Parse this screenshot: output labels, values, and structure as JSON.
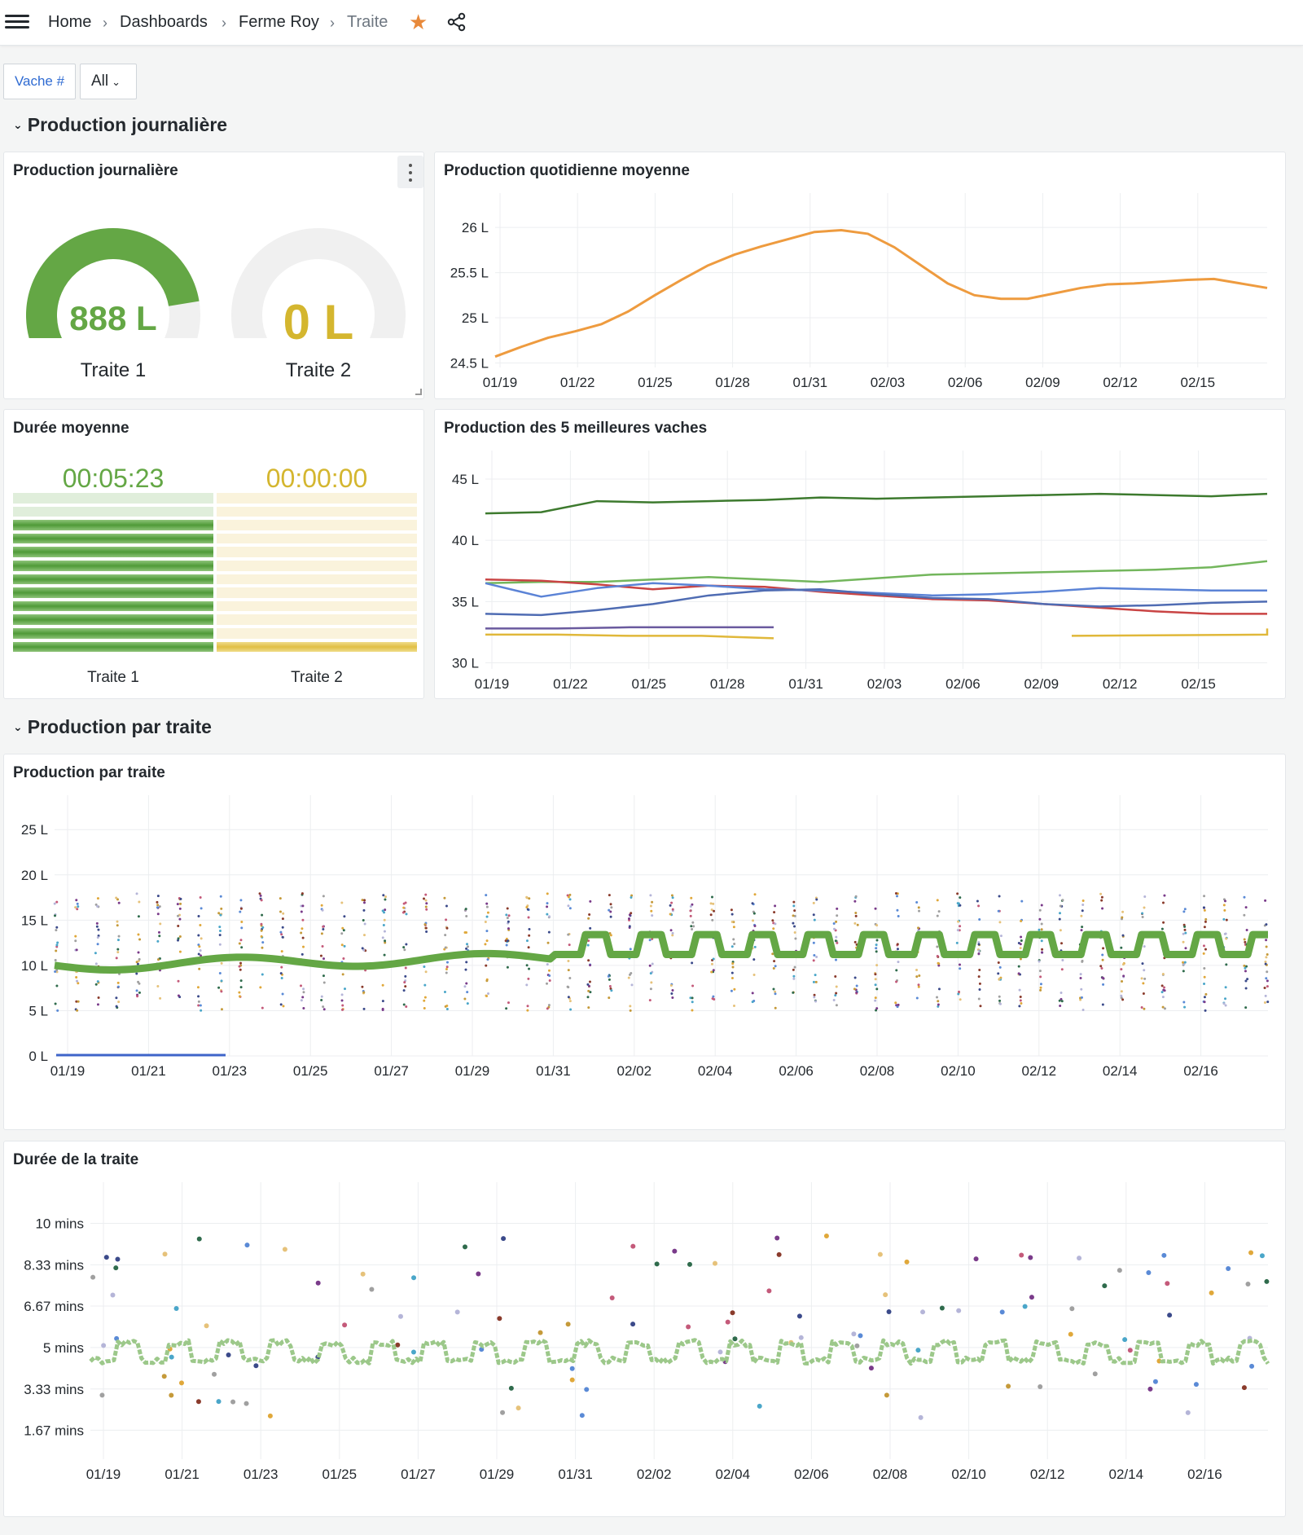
{
  "breadcrumbs": [
    "Home",
    "Dashboards",
    "Ferme Roy",
    "Traite"
  ],
  "variable": {
    "label": "Vache #",
    "value": "All"
  },
  "sections": {
    "s1": "Production journalière",
    "s2": "Production par traite"
  },
  "colors": {
    "green": "#64a745",
    "yellow": "#d4b62f",
    "orange": "#ee9b3f",
    "light_green": "#9cc88a"
  },
  "panels": {
    "gauges": {
      "title": "Production journalière",
      "items": [
        {
          "value": "888 L",
          "label": "Traite 1",
          "fraction": 0.85
        },
        {
          "value": "0 L",
          "label": "Traite 2",
          "fraction": 0
        }
      ]
    },
    "avg_daily": {
      "title": "Production quotidienne moyenne",
      "chart_data": {
        "type": "line",
        "x": [
          "01/19",
          "01/20",
          "01/21",
          "01/22",
          "01/23",
          "01/24",
          "01/25",
          "01/26",
          "01/27",
          "01/28",
          "01/29",
          "01/30",
          "01/31",
          "02/01",
          "02/02",
          "02/03",
          "02/04",
          "02/05",
          "02/06",
          "02/07",
          "02/08",
          "02/09",
          "02/10",
          "02/11",
          "02/12",
          "02/13",
          "02/14",
          "02/15",
          "02/16",
          "02/17"
        ],
        "x_ticks": [
          "01/19",
          "01/22",
          "01/25",
          "01/28",
          "01/31",
          "02/03",
          "02/06",
          "02/09",
          "02/12",
          "02/15"
        ],
        "y_ticks": [
          24.5,
          25,
          25.5,
          26
        ],
        "y_unit": " L",
        "ylim": [
          24.45,
          26.2
        ],
        "series": [
          {
            "color": "#ee9b3f",
            "values": [
              24.57,
              24.68,
              24.78,
              24.85,
              24.93,
              25.07,
              25.25,
              25.42,
              25.58,
              25.7,
              25.79,
              25.87,
              25.95,
              25.97,
              25.93,
              25.78,
              25.58,
              25.38,
              25.25,
              25.21,
              25.21,
              25.27,
              25.33,
              25.37,
              25.38,
              25.4,
              25.42,
              25.43,
              25.38,
              25.33
            ]
          }
        ]
      }
    },
    "duration": {
      "title": "Durée moyenne",
      "items": [
        {
          "value": "00:05:23",
          "label": "Traite 1"
        },
        {
          "value": "00:00:00",
          "label": "Traite 2"
        }
      ]
    },
    "top5": {
      "title": "Production des 5 meilleures vaches",
      "chart_data": {
        "type": "line",
        "x_ticks": [
          "01/19",
          "01/22",
          "01/25",
          "01/28",
          "01/31",
          "02/03",
          "02/06",
          "02/09",
          "02/12",
          "02/15"
        ],
        "y_ticks": [
          30,
          35,
          40,
          45
        ],
        "y_unit": " L",
        "ylim": [
          29.5,
          46
        ],
        "series": [
          {
            "color": "#3d7a2e",
            "values": [
              42.2,
              42.3,
              43.2,
              43.1,
              43.2,
              43.3,
              43.5,
              43.4,
              43.5,
              43.6,
              43.7,
              43.8,
              43.7,
              43.6,
              43.8
            ]
          },
          {
            "color": "#73b65c",
            "values": [
              36.5,
              36.6,
              36.6,
              36.8,
              37.0,
              36.8,
              36.6,
              36.9,
              37.2,
              37.3,
              37.4,
              37.5,
              37.6,
              37.8,
              38.3
            ]
          },
          {
            "color": "#c94444",
            "values": [
              36.8,
              36.7,
              36.4,
              36.0,
              36.3,
              36.2,
              35.8,
              35.5,
              35.2,
              35.1,
              34.8,
              34.5,
              34.2,
              34.0,
              34.0
            ]
          },
          {
            "color": "#5b83d6",
            "values": [
              36.5,
              35.4,
              36.1,
              36.5,
              36.3,
              36.0,
              35.9,
              35.7,
              35.5,
              35.6,
              35.8,
              36.1,
              36.0,
              35.9,
              35.9
            ]
          },
          {
            "color": "#4f6cb3",
            "values": [
              34.0,
              33.9,
              34.3,
              34.8,
              35.5,
              35.9,
              36.0,
              35.6,
              35.3,
              35.2,
              34.8,
              34.6,
              34.7,
              34.9,
              35.0
            ]
          },
          {
            "color": "#e0b83a",
            "values": [
              32.3,
              32.3,
              32.2,
              32.2,
              32.0
            ]
          },
          {
            "color": "#6a5a9e",
            "values": [
              32.8,
              32.8,
              32.9,
              32.9,
              32.9
            ]
          }
        ]
      }
    },
    "per_milking": {
      "title": "Production par traite",
      "chart_data": {
        "type": "scatter",
        "x_ticks": [
          "01/19",
          "01/21",
          "01/23",
          "01/25",
          "01/27",
          "01/29",
          "01/31",
          "02/02",
          "02/04",
          "02/06",
          "02/08",
          "02/10",
          "02/12",
          "02/14",
          "02/16"
        ],
        "y_ticks": [
          0,
          5,
          10,
          15,
          20,
          25
        ],
        "y_unit": " L",
        "ylim": [
          0,
          27
        ],
        "mean_series_color": "#64a745"
      }
    },
    "milking_duration": {
      "title": "Durée de la traite",
      "chart_data": {
        "type": "scatter",
        "x_ticks": [
          "01/19",
          "01/21",
          "01/23",
          "01/25",
          "01/27",
          "01/29",
          "01/31",
          "02/02",
          "02/04",
          "02/06",
          "02/08",
          "02/10",
          "02/12",
          "02/14",
          "02/16"
        ],
        "y_ticks": [
          "1.67 mins",
          "3.33 mins",
          "5 mins",
          "6.67 mins",
          "8.33 mins",
          "10 mins"
        ],
        "ylim": [
          0.5,
          11
        ],
        "mean_series_color": "#9cc88a"
      }
    }
  }
}
